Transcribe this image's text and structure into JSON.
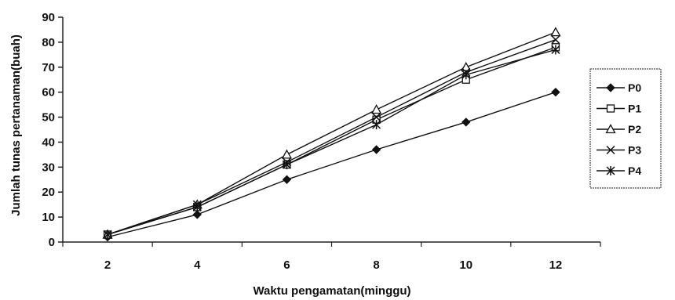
{
  "chart_data": {
    "type": "line",
    "xlabel": "Waktu pengamatan(minggu)",
    "ylabel": "Jumlah tunas pertanaman(buah)",
    "x": [
      2,
      4,
      6,
      8,
      10,
      12
    ],
    "ylim": [
      0,
      90
    ],
    "y_ticks": [
      0,
      10,
      20,
      30,
      40,
      50,
      60,
      70,
      80,
      90
    ],
    "grid": false,
    "legend_position": "right",
    "series": [
      {
        "name": "P0",
        "marker": "diamond-filled",
        "values": [
          2,
          11,
          25,
          37,
          48,
          60
        ]
      },
      {
        "name": "P1",
        "marker": "square-open",
        "values": [
          3,
          14,
          31,
          49,
          65,
          78
        ]
      },
      {
        "name": "P2",
        "marker": "triangle-open",
        "values": [
          3,
          15,
          35,
          53,
          70,
          84
        ]
      },
      {
        "name": "P3",
        "marker": "x",
        "values": [
          3,
          15,
          32,
          50,
          68,
          81
        ]
      },
      {
        "name": "P4",
        "marker": "asterisk",
        "values": [
          3,
          14,
          31,
          47,
          67,
          77
        ]
      }
    ]
  }
}
